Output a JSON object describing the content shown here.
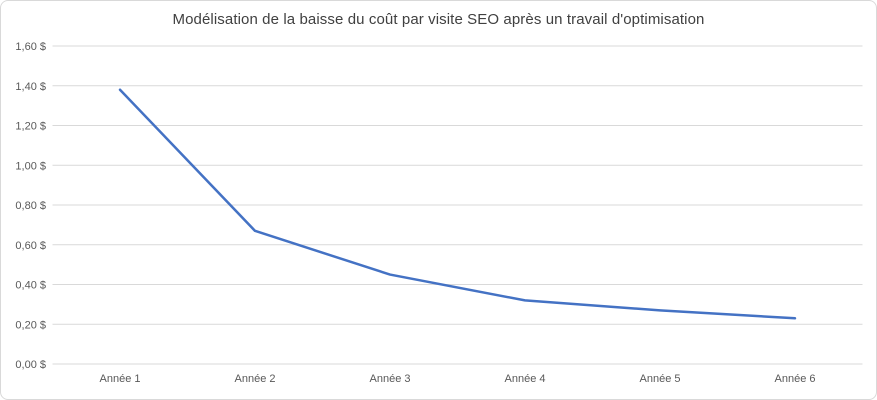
{
  "chart_data": {
    "type": "line",
    "title": "Modélisation de la baisse du coût par visite SEO après un travail d'optimisation",
    "categories": [
      "Année 1",
      "Année 2",
      "Année 3",
      "Année 4",
      "Année 5",
      "Année 6"
    ],
    "values": [
      1.38,
      0.67,
      0.45,
      0.32,
      0.27,
      0.23
    ],
    "y_ticks": [
      "1,60 $",
      "1,40 $",
      "1,20 $",
      "1,00 $",
      "0,80 $",
      "0,60 $",
      "0,40 $",
      "0,20 $",
      "0,00 $"
    ],
    "ylim": [
      0,
      1.6
    ],
    "y_step": 0.2,
    "xlabel": "",
    "ylabel": "",
    "grid": true,
    "legend": "none",
    "colors": {
      "line": "#4472C4",
      "gridline": "#D9D9D9",
      "axis": "#D9D9D9",
      "title_text": "#404040",
      "tick_text": "#595959",
      "background": "#FFFFFF"
    }
  }
}
